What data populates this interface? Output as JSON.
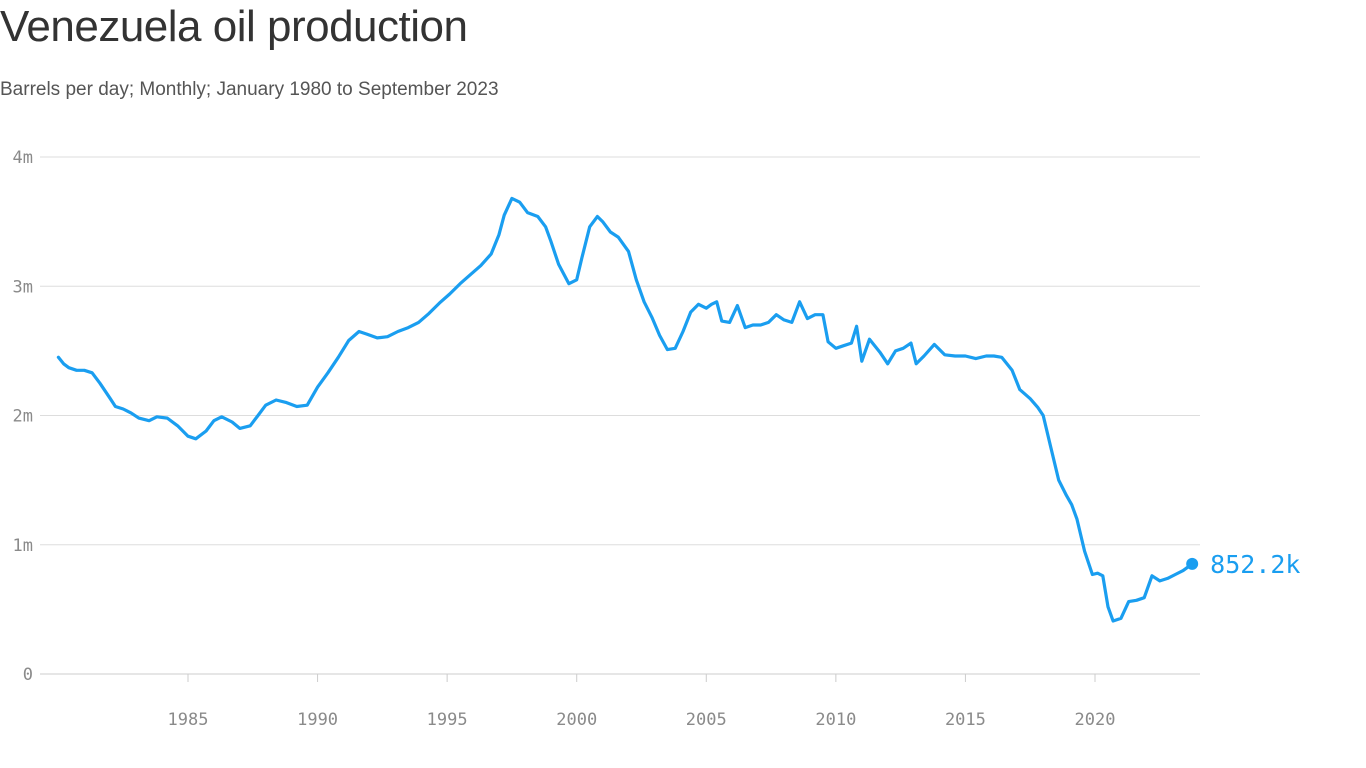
{
  "chart_data": {
    "type": "line",
    "title": "Venezuela oil production",
    "subtitle": "Barrels per day; Monthly; January 1980 to September 2023",
    "xlabel": "",
    "ylabel": "",
    "x_range": [
      1980.0,
      2023.75
    ],
    "ylim": [
      0,
      4000000
    ],
    "y_ticks": [
      {
        "value": 0,
        "label": "0"
      },
      {
        "value": 1000000,
        "label": "1m"
      },
      {
        "value": 2000000,
        "label": "2m"
      },
      {
        "value": 3000000,
        "label": "3m"
      },
      {
        "value": 4000000,
        "label": "4m"
      }
    ],
    "x_ticks": [
      {
        "value": 1985,
        "label": "1985"
      },
      {
        "value": 1990,
        "label": "1990"
      },
      {
        "value": 1995,
        "label": "1995"
      },
      {
        "value": 2000,
        "label": "2000"
      },
      {
        "value": 2005,
        "label": "2005"
      },
      {
        "value": 2010,
        "label": "2010"
      },
      {
        "value": 2015,
        "label": "2015"
      },
      {
        "value": 2020,
        "label": "2020"
      }
    ],
    "grid": true,
    "line_color": "#1a9ef0",
    "end_label": "852.2k",
    "series": [
      {
        "x": [
          1980.0,
          1980.2,
          1980.4,
          1980.7,
          1981.0,
          1981.3,
          1981.6,
          1982.0,
          1982.2,
          1982.5,
          1982.8,
          1983.1,
          1983.5,
          1983.8,
          1984.2,
          1984.6,
          1985.0,
          1985.3,
          1985.7,
          1986.0,
          1986.3,
          1986.7,
          1987.0,
          1987.4,
          1987.7,
          1988.0,
          1988.4,
          1988.8,
          1989.2,
          1989.6,
          1990.0,
          1990.4,
          1990.8,
          1991.2,
          1991.6,
          1991.9,
          1992.3,
          1992.7,
          1993.1,
          1993.5,
          1993.9,
          1994.3,
          1994.7,
          1995.1,
          1995.5,
          1995.9,
          1996.3,
          1996.7,
          1997.0,
          1997.2,
          1997.5,
          1997.8,
          1998.1,
          1998.5,
          1998.8,
          1999.0,
          1999.3,
          1999.7,
          2000.0,
          2000.2,
          2000.5,
          2000.8,
          2001.0,
          2001.3,
          2001.6,
          2002.0,
          2002.3,
          2002.6,
          2002.9,
          2003.2,
          2003.5,
          2003.8,
          2004.1,
          2004.4,
          2004.7,
          2005.0,
          2005.2,
          2005.4,
          2005.6,
          2005.9,
          2006.2,
          2006.5,
          2006.8,
          2007.1,
          2007.4,
          2007.7,
          2008.0,
          2008.3,
          2008.6,
          2008.9,
          2009.2,
          2009.5,
          2009.7,
          2010.0,
          2010.3,
          2010.6,
          2010.8,
          2011.0,
          2011.3,
          2011.7,
          2012.0,
          2012.3,
          2012.6,
          2012.9,
          2013.1,
          2013.4,
          2013.8,
          2014.2,
          2014.6,
          2015.0,
          2015.4,
          2015.8,
          2016.1,
          2016.4,
          2016.8,
          2017.1,
          2017.5,
          2017.8,
          2018.0,
          2018.3,
          2018.6,
          2018.9,
          2019.1,
          2019.3,
          2019.6,
          2019.9,
          2020.1,
          2020.3,
          2020.5,
          2020.7,
          2021.0,
          2021.3,
          2021.6,
          2021.9,
          2022.2,
          2022.5,
          2022.8,
          2023.1,
          2023.4,
          2023.75
        ],
        "values": [
          2450000,
          2400000,
          2370000,
          2350000,
          2350000,
          2330000,
          2250000,
          2130000,
          2070000,
          2050000,
          2020000,
          1980000,
          1960000,
          1990000,
          1980000,
          1920000,
          1840000,
          1820000,
          1880000,
          1960000,
          1990000,
          1950000,
          1900000,
          1920000,
          2000000,
          2080000,
          2120000,
          2100000,
          2070000,
          2080000,
          2220000,
          2330000,
          2450000,
          2580000,
          2650000,
          2630000,
          2600000,
          2610000,
          2650000,
          2680000,
          2720000,
          2790000,
          2870000,
          2940000,
          3020000,
          3090000,
          3160000,
          3250000,
          3400000,
          3550000,
          3680000,
          3650000,
          3570000,
          3540000,
          3460000,
          3350000,
          3170000,
          3020000,
          3050000,
          3220000,
          3460000,
          3540000,
          3500000,
          3420000,
          3380000,
          3270000,
          3050000,
          2880000,
          2760000,
          2620000,
          2510000,
          2520000,
          2650000,
          2800000,
          2860000,
          2830000,
          2860000,
          2880000,
          2730000,
          2720000,
          2850000,
          2680000,
          2700000,
          2700000,
          2720000,
          2780000,
          2740000,
          2720000,
          2880000,
          2750000,
          2780000,
          2780000,
          2570000,
          2520000,
          2540000,
          2560000,
          2690000,
          2420000,
          2590000,
          2490000,
          2400000,
          2500000,
          2520000,
          2560000,
          2400000,
          2460000,
          2550000,
          2470000,
          2460000,
          2460000,
          2440000,
          2460000,
          2460000,
          2450000,
          2350000,
          2200000,
          2130000,
          2060000,
          2000000,
          1750000,
          1500000,
          1380000,
          1310000,
          1200000,
          950000,
          770000,
          780000,
          760000,
          520000,
          410000,
          430000,
          560000,
          570000,
          590000,
          760000,
          720000,
          740000,
          770000,
          800000,
          852200
        ]
      }
    ]
  }
}
